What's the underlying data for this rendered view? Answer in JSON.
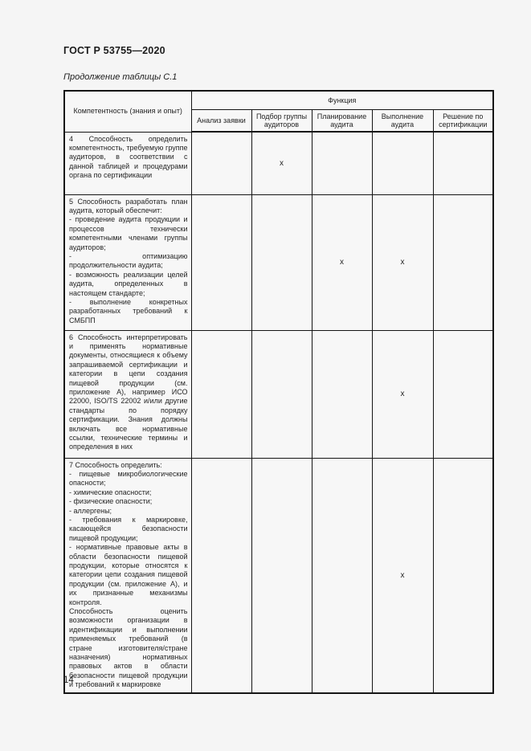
{
  "page": {
    "doc_number": "ГОСТ Р 53755—2020",
    "table_caption": "Продолжение таблицы С.1",
    "page_number": "14"
  },
  "table": {
    "competence_header": "Компетентность (знания и опыт)",
    "function_header": "Функция",
    "function_columns": [
      "Анализ заявки",
      "Подбор группы аудиторов",
      "Планирование аудита",
      "Выполнение аудита",
      "Решение по сертификации"
    ],
    "rows": [
      {
        "competence": "4 Способность определить компетентность, требуемую группе аудиторов, в соответствии с данной таблицей и процедурами органа по сертификации",
        "marks": [
          "",
          "х",
          "",
          "",
          ""
        ]
      },
      {
        "competence": "5 Способность разработать план аудита, который обеспечит:\n- проведение аудита продукции и процессов технически компетентными членами группы аудиторов;\n- оптимизацию продолжительности аудита;\n- возможность реализации целей аудита, определенных в настоящем стандарте;\n- выполнение конкретных разработанных требований к СМБПП",
        "marks": [
          "",
          "",
          "х",
          "х",
          ""
        ]
      },
      {
        "competence": "6 Способность интерпретировать и применять нормативные документы, относящиеся к объему запрашиваемой сертификации и категории в цепи создания пищевой продукции (см. приложение А), например ИСО 22000, ISO/TS 22002 и/или другие стандарты по порядку сертификации. Знания должны включать все нормативные ссылки, технические термины и определения в них",
        "marks": [
          "",
          "",
          "",
          "х",
          ""
        ]
      },
      {
        "competence": "7 Способность определить:\n- пищевые микробиологические опасности;\n- химические опасности;\n- физические опасности;\n- аллергены;\n- требования к маркировке, касающейся безопасности пищевой продукции;\n- нормативные правовые акты в области безопасности пищевой продукции, которые относятся к категории цепи создания пищевой продукции (см. приложение А), и их признанные механизмы контроля.\nСпособность оценить возможности организации в идентификации и выполнении применяемых требований (в стране изготовителя/стране назначения) нормативных правовых актов в области безопасности пищевой продукции и требований к маркировке",
        "marks": [
          "",
          "",
          "",
          "х",
          ""
        ]
      }
    ]
  },
  "colors": {
    "page_background": "#f5f5f5",
    "text": "#222222",
    "border": "#151515"
  }
}
